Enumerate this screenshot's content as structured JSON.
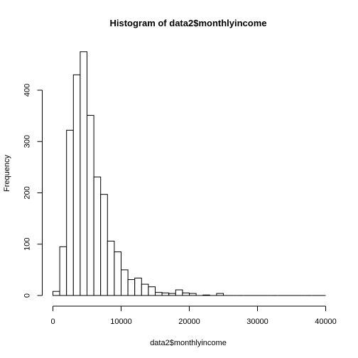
{
  "chart_data": {
    "type": "bar",
    "title": "Histogram of data2$monthlyincome",
    "xlabel": "data2$monthlyincome",
    "ylabel": "Frequency",
    "xlim": [
      0,
      40000
    ],
    "ylim": [
      0,
      475
    ],
    "bin_width": 1000,
    "bins": [
      {
        "start": 0,
        "end": 1000,
        "count": 8
      },
      {
        "start": 1000,
        "end": 2000,
        "count": 95
      },
      {
        "start": 2000,
        "end": 3000,
        "count": 322
      },
      {
        "start": 3000,
        "end": 4000,
        "count": 430
      },
      {
        "start": 4000,
        "end": 5000,
        "count": 475
      },
      {
        "start": 5000,
        "end": 6000,
        "count": 351
      },
      {
        "start": 6000,
        "end": 7000,
        "count": 231
      },
      {
        "start": 7000,
        "end": 8000,
        "count": 197
      },
      {
        "start": 8000,
        "end": 9000,
        "count": 106
      },
      {
        "start": 9000,
        "end": 10000,
        "count": 85
      },
      {
        "start": 10000,
        "end": 11000,
        "count": 50
      },
      {
        "start": 11000,
        "end": 12000,
        "count": 31
      },
      {
        "start": 12000,
        "end": 13000,
        "count": 34
      },
      {
        "start": 13000,
        "end": 14000,
        "count": 22
      },
      {
        "start": 14000,
        "end": 15000,
        "count": 17
      },
      {
        "start": 15000,
        "end": 16000,
        "count": 6
      },
      {
        "start": 16000,
        "end": 17000,
        "count": 5
      },
      {
        "start": 17000,
        "end": 18000,
        "count": 4
      },
      {
        "start": 18000,
        "end": 19000,
        "count": 11
      },
      {
        "start": 19000,
        "end": 20000,
        "count": 5
      },
      {
        "start": 20000,
        "end": 21000,
        "count": 4
      },
      {
        "start": 21000,
        "end": 22000,
        "count": 0
      },
      {
        "start": 22000,
        "end": 23000,
        "count": 1
      },
      {
        "start": 23000,
        "end": 24000,
        "count": 0
      },
      {
        "start": 24000,
        "end": 25000,
        "count": 4
      },
      {
        "start": 25000,
        "end": 26000,
        "count": 0
      },
      {
        "start": 26000,
        "end": 27000,
        "count": 0
      },
      {
        "start": 27000,
        "end": 28000,
        "count": 0
      },
      {
        "start": 28000,
        "end": 29000,
        "count": 0
      },
      {
        "start": 29000,
        "end": 30000,
        "count": 0
      },
      {
        "start": 30000,
        "end": 31000,
        "count": 0
      },
      {
        "start": 31000,
        "end": 32000,
        "count": 0
      },
      {
        "start": 32000,
        "end": 33000,
        "count": 0
      },
      {
        "start": 33000,
        "end": 34000,
        "count": 0
      },
      {
        "start": 34000,
        "end": 35000,
        "count": 0
      },
      {
        "start": 35000,
        "end": 36000,
        "count": 0
      },
      {
        "start": 36000,
        "end": 37000,
        "count": 0
      },
      {
        "start": 37000,
        "end": 38000,
        "count": 0
      },
      {
        "start": 38000,
        "end": 39000,
        "count": 0
      },
      {
        "start": 39000,
        "end": 40000,
        "count": 0
      }
    ],
    "x_ticks": [
      "0",
      "10000",
      "20000",
      "30000",
      "40000"
    ],
    "y_ticks": [
      "0",
      "100",
      "200",
      "300",
      "400"
    ],
    "grid": false,
    "legend": "none"
  }
}
